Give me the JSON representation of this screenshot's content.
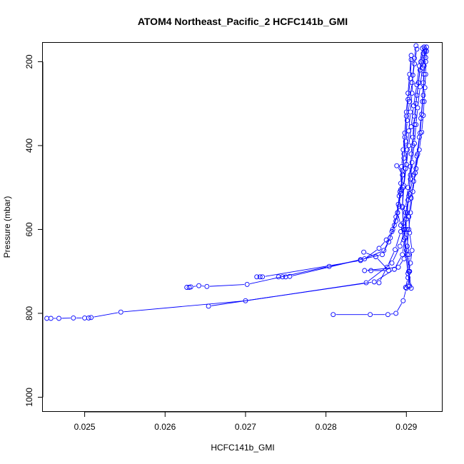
{
  "chart_data": {
    "type": "line",
    "title": "ATOM4 Northeast_Pacific_2 HCFC141b_GMI",
    "xlabel": "HCFC141b_GMI",
    "ylabel": "Pressure (mbar)",
    "xlim": [
      0.02448,
      0.02945
    ],
    "ylim": [
      1035,
      155
    ],
    "y_reversed": true,
    "grid": false,
    "legend": "none",
    "x_ticks": [
      0.025,
      0.026,
      0.027,
      0.028,
      0.029
    ],
    "x_tick_labels": [
      "0.025",
      "0.026",
      "0.027",
      "0.028",
      "0.029"
    ],
    "y_ticks": [
      200,
      400,
      600,
      800,
      1000
    ],
    "y_tick_labels": [
      "200",
      "400",
      "600",
      "800",
      "1000"
    ],
    "colors": {
      "series": "#0000ff",
      "axis": "#000000"
    },
    "series": [
      {
        "points": [
          [
            0.02809,
            803
          ],
          [
            0.02855,
            803
          ],
          [
            0.02877,
            803
          ],
          [
            0.02887,
            800
          ],
          [
            0.02896,
            770
          ],
          [
            0.029,
            740
          ],
          [
            0.02902,
            735
          ],
          [
            0.02904,
            700
          ],
          [
            0.02903,
            660
          ],
          [
            0.029,
            600
          ],
          [
            0.02899,
            550
          ],
          [
            0.02902,
            500
          ],
          [
            0.02905,
            450
          ],
          [
            0.02908,
            400
          ],
          [
            0.0291,
            350
          ],
          [
            0.02912,
            300
          ],
          [
            0.02915,
            250
          ],
          [
            0.02918,
            200
          ],
          [
            0.02922,
            165
          ]
        ]
      },
      {
        "points": [
          [
            0.02453,
            812
          ],
          [
            0.02458,
            812
          ],
          [
            0.02468,
            812
          ],
          [
            0.02486,
            811
          ],
          [
            0.025,
            811
          ],
          [
            0.02505,
            811
          ],
          [
            0.02508,
            810
          ],
          [
            0.02545,
            797
          ],
          [
            0.027,
            770
          ],
          [
            0.0285,
            727
          ],
          [
            0.02882,
            680
          ],
          [
            0.02892,
            640
          ],
          [
            0.02898,
            600
          ],
          [
            0.02901,
            560
          ],
          [
            0.02903,
            520
          ],
          [
            0.02905,
            470
          ],
          [
            0.02906,
            420
          ],
          [
            0.02908,
            380
          ],
          [
            0.0291,
            330
          ],
          [
            0.02913,
            280
          ],
          [
            0.02917,
            220
          ],
          [
            0.02921,
            180
          ]
        ]
      },
      {
        "points": [
          [
            0.02627,
            738
          ],
          [
            0.0263,
            738
          ],
          [
            0.02632,
            737
          ],
          [
            0.02642,
            734
          ],
          [
            0.02652,
            736
          ],
          [
            0.02702,
            731
          ],
          [
            0.02804,
            688
          ],
          [
            0.02848,
            670
          ],
          [
            0.02866,
            645
          ],
          [
            0.02875,
            625
          ],
          [
            0.02882,
            605
          ],
          [
            0.02887,
            580
          ],
          [
            0.02891,
            545
          ],
          [
            0.02893,
            505
          ],
          [
            0.02895,
            460
          ],
          [
            0.02897,
            420
          ],
          [
            0.02898,
            380
          ],
          [
            0.029,
            330
          ],
          [
            0.02902,
            290
          ],
          [
            0.02905,
            240
          ],
          [
            0.02906,
            195
          ]
        ]
      },
      {
        "points": [
          [
            0.02654,
            783
          ],
          [
            0.0286,
            725
          ],
          [
            0.02885,
            695
          ],
          [
            0.02895,
            660
          ],
          [
            0.02898,
            620
          ],
          [
            0.029,
            575
          ],
          [
            0.02902,
            530
          ],
          [
            0.02905,
            480
          ],
          [
            0.02907,
            440
          ],
          [
            0.0291,
            395
          ],
          [
            0.02912,
            350
          ],
          [
            0.02914,
            310
          ],
          [
            0.02917,
            260
          ],
          [
            0.0292,
            215
          ],
          [
            0.02923,
            170
          ]
        ]
      },
      {
        "points": [
          [
            0.02714,
            713
          ],
          [
            0.02718,
            713
          ],
          [
            0.02721,
            713
          ],
          [
            0.02843,
            674
          ],
          [
            0.02872,
            650
          ],
          [
            0.0288,
            620
          ],
          [
            0.02885,
            590
          ],
          [
            0.02889,
            560
          ],
          [
            0.02891,
            520
          ],
          [
            0.02893,
            490
          ],
          [
            0.02894,
            450
          ],
          [
            0.02896,
            410
          ],
          [
            0.02898,
            370
          ],
          [
            0.029,
            320
          ],
          [
            0.02902,
            275
          ],
          [
            0.02904,
            230
          ],
          [
            0.02906,
            185
          ]
        ]
      },
      {
        "points": [
          [
            0.02741,
            713
          ],
          [
            0.02746,
            713
          ],
          [
            0.0275,
            713
          ],
          [
            0.02755,
            712
          ],
          [
            0.02843,
            672
          ],
          [
            0.0287,
            660
          ],
          [
            0.02878,
            630
          ],
          [
            0.02883,
            600
          ],
          [
            0.02887,
            570
          ],
          [
            0.0289,
            540
          ],
          [
            0.02893,
            515
          ],
          [
            0.02895,
            470
          ],
          [
            0.02897,
            430
          ],
          [
            0.02899,
            390
          ],
          [
            0.02901,
            340
          ],
          [
            0.02904,
            295
          ],
          [
            0.02907,
            250
          ],
          [
            0.0291,
            205
          ],
          [
            0.02913,
            170
          ]
        ]
      },
      {
        "points": [
          [
            0.02847,
            654
          ],
          [
            0.02862,
            665
          ],
          [
            0.02878,
            698
          ],
          [
            0.02856,
            698
          ],
          [
            0.02848,
            698
          ],
          [
            0.0289,
            690
          ],
          [
            0.02897,
            670
          ],
          [
            0.02901,
            640
          ],
          [
            0.02903,
            600
          ],
          [
            0.02905,
            560
          ],
          [
            0.02908,
            510
          ],
          [
            0.02911,
            465
          ],
          [
            0.02914,
            420
          ],
          [
            0.02917,
            370
          ],
          [
            0.02919,
            325
          ],
          [
            0.02921,
            280
          ],
          [
            0.02922,
            230
          ],
          [
            0.02924,
            190
          ],
          [
            0.02925,
            165
          ]
        ]
      },
      {
        "points": [
          [
            0.02866,
            727
          ],
          [
            0.02876,
            690
          ],
          [
            0.02886,
            648
          ],
          [
            0.02893,
            605
          ],
          [
            0.02899,
            560
          ],
          [
            0.02904,
            515
          ],
          [
            0.02909,
            470
          ],
          [
            0.02913,
            425
          ],
          [
            0.02916,
            380
          ],
          [
            0.02918,
            335
          ],
          [
            0.0292,
            295
          ],
          [
            0.02921,
            250
          ],
          [
            0.02922,
            210
          ],
          [
            0.02923,
            175
          ]
        ]
      },
      {
        "points": [
          [
            0.02888,
            448
          ],
          [
            0.02896,
            470
          ],
          [
            0.02892,
            510
          ],
          [
            0.02889,
            560
          ],
          [
            0.02893,
            590
          ],
          [
            0.02897,
            625
          ],
          [
            0.02902,
            705
          ],
          [
            0.02904,
            735
          ],
          [
            0.02903,
            700
          ],
          [
            0.029,
            650
          ],
          [
            0.02897,
            600
          ],
          [
            0.02895,
            548
          ],
          [
            0.02897,
            496
          ],
          [
            0.029,
            445
          ],
          [
            0.02903,
            400
          ],
          [
            0.02906,
            355
          ],
          [
            0.02909,
            305
          ],
          [
            0.02913,
            255
          ],
          [
            0.02916,
            210
          ],
          [
            0.0292,
            168
          ]
        ]
      },
      {
        "points": [
          [
            0.02906,
            740
          ],
          [
            0.02903,
            700
          ],
          [
            0.02901,
            660
          ],
          [
            0.02898,
            620
          ],
          [
            0.02896,
            585
          ],
          [
            0.02895,
            545
          ],
          [
            0.02896,
            500
          ],
          [
            0.02899,
            455
          ],
          [
            0.02901,
            410
          ],
          [
            0.02903,
            365
          ],
          [
            0.02905,
            320
          ],
          [
            0.02907,
            275
          ],
          [
            0.02908,
            232
          ],
          [
            0.0291,
            192
          ],
          [
            0.02912,
            162
          ]
        ]
      },
      {
        "points": [
          [
            0.02899,
            738
          ],
          [
            0.02902,
            715
          ],
          [
            0.02905,
            680
          ],
          [
            0.02907,
            650
          ],
          [
            0.02904,
            608
          ],
          [
            0.02903,
            570
          ],
          [
            0.02906,
            525
          ],
          [
            0.02909,
            485
          ],
          [
            0.02912,
            455
          ],
          [
            0.02916,
            410
          ],
          [
            0.02919,
            368
          ],
          [
            0.02921,
            328
          ],
          [
            0.02922,
            295
          ],
          [
            0.02923,
            262
          ],
          [
            0.02924,
            230
          ],
          [
            0.02924,
            200
          ],
          [
            0.02925,
            175
          ]
        ]
      }
    ]
  }
}
